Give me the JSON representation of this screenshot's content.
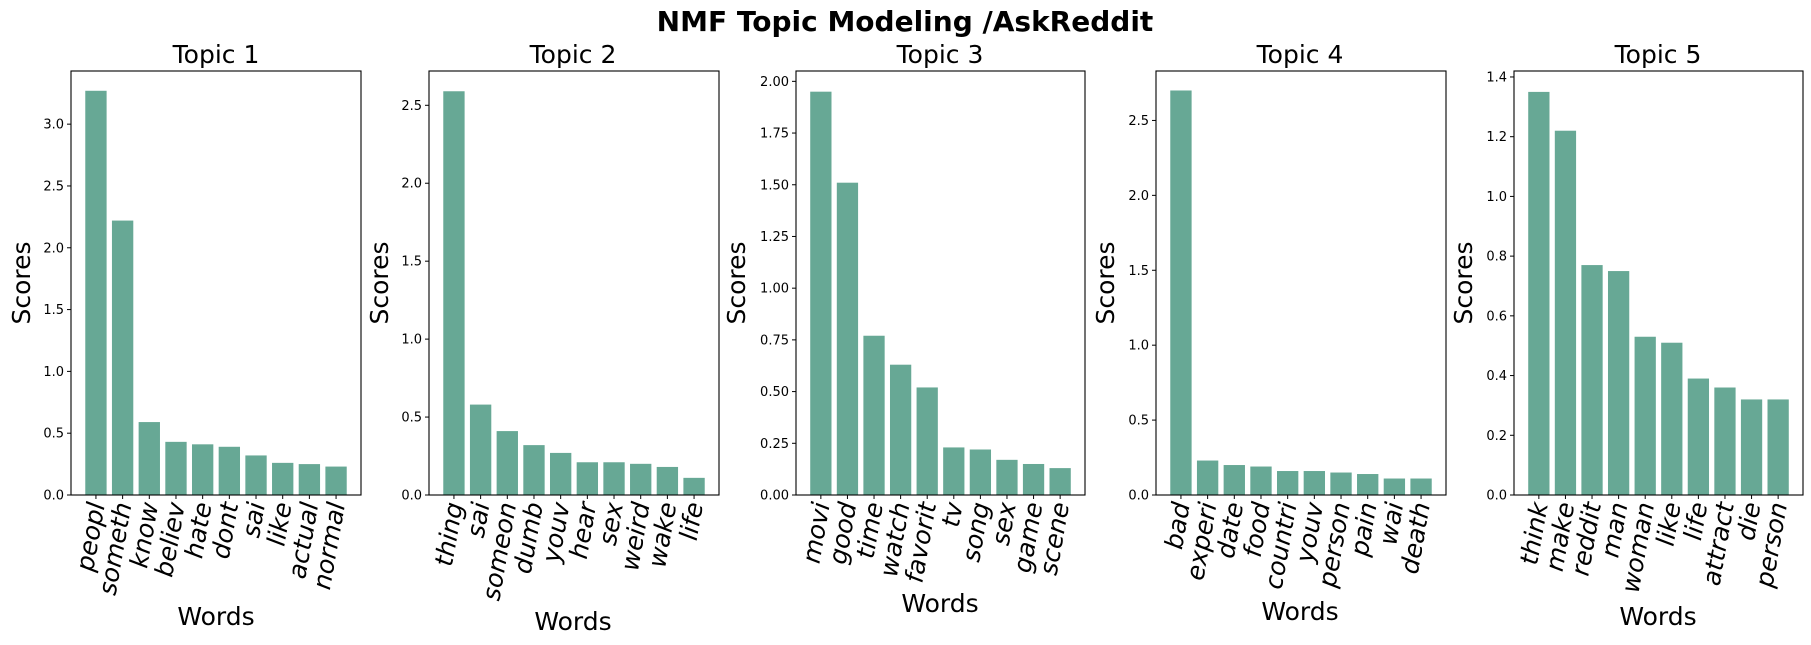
{
  "figure": {
    "title": "NMF Topic Modeling /AskReddit",
    "bar_color": "#67a895"
  },
  "chart_data": [
    {
      "type": "bar",
      "title": "Topic 1",
      "xlabel": "Words",
      "ylabel": "Scores",
      "categories": [
        "peopl",
        "someth",
        "know",
        "believ",
        "hate",
        "dont",
        "sai",
        "like",
        "actual",
        "normal"
      ],
      "values": [
        3.27,
        2.22,
        0.59,
        0.43,
        0.41,
        0.39,
        0.32,
        0.26,
        0.25,
        0.23
      ],
      "ylim": [
        0,
        3.43
      ],
      "yticks": [
        0.0,
        0.5,
        1.0,
        1.5,
        2.0,
        2.5,
        3.0
      ],
      "ytick_labels": [
        "0.0",
        "0.5",
        "1.0",
        "1.5",
        "2.0",
        "2.5",
        "3.0"
      ],
      "grid": false
    },
    {
      "type": "bar",
      "title": "Topic 2",
      "xlabel": "Words",
      "ylabel": "Scores",
      "categories": [
        "thing",
        "sai",
        "someon",
        "dumb",
        "youv",
        "hear",
        "sex",
        "weird",
        "wake",
        "life"
      ],
      "values": [
        2.59,
        0.58,
        0.41,
        0.32,
        0.27,
        0.21,
        0.21,
        0.2,
        0.18,
        0.11
      ],
      "ylim": [
        0,
        2.72
      ],
      "yticks": [
        0.0,
        0.5,
        1.0,
        1.5,
        2.0,
        2.5
      ],
      "ytick_labels": [
        "0.0",
        "0.5",
        "1.0",
        "1.5",
        "2.0",
        "2.5"
      ],
      "grid": false
    },
    {
      "type": "bar",
      "title": "Topic 3",
      "xlabel": "Words",
      "ylabel": "Scores",
      "categories": [
        "movi",
        "good",
        "time",
        "watch",
        "favorit",
        "tv",
        "song",
        "sex",
        "game",
        "scene"
      ],
      "values": [
        1.95,
        1.51,
        0.77,
        0.63,
        0.52,
        0.23,
        0.22,
        0.17,
        0.15,
        0.13
      ],
      "ylim": [
        0,
        2.05
      ],
      "yticks": [
        0.0,
        0.25,
        0.5,
        0.75,
        1.0,
        1.25,
        1.5,
        1.75,
        2.0
      ],
      "ytick_labels": [
        "0.00",
        "0.25",
        "0.50",
        "0.75",
        "1.00",
        "1.25",
        "1.50",
        "1.75",
        "2.00"
      ],
      "grid": false
    },
    {
      "type": "bar",
      "title": "Topic 4",
      "xlabel": "Words",
      "ylabel": "Scores",
      "categories": [
        "bad",
        "experi",
        "date",
        "food",
        "countri",
        "youv",
        "person",
        "pain",
        "wai",
        "death"
      ],
      "values": [
        2.7,
        0.23,
        0.2,
        0.19,
        0.16,
        0.16,
        0.15,
        0.14,
        0.11,
        0.11
      ],
      "ylim": [
        0,
        2.83
      ],
      "yticks": [
        0.0,
        0.5,
        1.0,
        1.5,
        2.0,
        2.5
      ],
      "ytick_labels": [
        "0.0",
        "0.5",
        "1.0",
        "1.5",
        "2.0",
        "2.5"
      ],
      "grid": false
    },
    {
      "type": "bar",
      "title": "Topic 5",
      "xlabel": "Words",
      "ylabel": "Scores",
      "categories": [
        "think",
        "make",
        "reddit",
        "man",
        "woman",
        "like",
        "life",
        "attract",
        "die",
        "person"
      ],
      "values": [
        1.35,
        1.22,
        0.77,
        0.75,
        0.53,
        0.51,
        0.39,
        0.36,
        0.32,
        0.32
      ],
      "ylim": [
        0,
        1.42
      ],
      "yticks": [
        0.0,
        0.2,
        0.4,
        0.6,
        0.8,
        1.0,
        1.2,
        1.4
      ],
      "ytick_labels": [
        "0.0",
        "0.2",
        "0.4",
        "0.6",
        "0.8",
        "1.0",
        "1.2",
        "1.4"
      ],
      "grid": false
    }
  ]
}
